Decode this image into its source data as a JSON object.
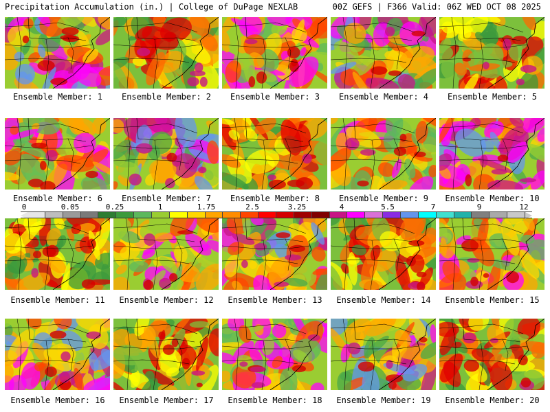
{
  "header": {
    "title": "Precipitation Accumulation (in.) | College of DuPage NEXLAB",
    "run_info": "00Z GEFS | F366 Valid: 06Z WED OCT 08 2025"
  },
  "panels": [
    {
      "label": "Ensemble Member: 1"
    },
    {
      "label": "Ensemble Member: 2"
    },
    {
      "label": "Ensemble Member: 3"
    },
    {
      "label": "Ensemble Member: 4"
    },
    {
      "label": "Ensemble Member: 5"
    },
    {
      "label": "Ensemble Member: 6"
    },
    {
      "label": "Ensemble Member: 7"
    },
    {
      "label": "Ensemble Member: 8"
    },
    {
      "label": "Ensemble Member: 9"
    },
    {
      "label": "Ensemble Member: 10"
    },
    {
      "label": "Ensemble Member: 11"
    },
    {
      "label": "Ensemble Member: 12"
    },
    {
      "label": "Ensemble Member: 13"
    },
    {
      "label": "Ensemble Member: 14"
    },
    {
      "label": "Ensemble Member: 15"
    },
    {
      "label": "Ensemble Member: 16"
    },
    {
      "label": "Ensemble Member: 17"
    },
    {
      "label": "Ensemble Member: 18"
    },
    {
      "label": "Ensemble Member: 19"
    },
    {
      "label": "Ensemble Member: 20"
    }
  ],
  "colorbar": {
    "tick_labels": [
      "0",
      "0.05",
      "0.25",
      "1",
      "1.75",
      "2.5",
      "3.25",
      "4",
      "5.5",
      "7",
      "9",
      "12"
    ],
    "colors": [
      "#e6e6e6",
      "#bdbdbd",
      "#9a9a9a",
      "#7a7a7a",
      "#2e7d32",
      "#3c9a3c",
      "#5cb85c",
      "#9acd32",
      "#ffff00",
      "#ffd700",
      "#ffa500",
      "#ff8c00",
      "#ff4500",
      "#ff0000",
      "#d40000",
      "#a00000",
      "#800000",
      "#c71585",
      "#ff00ff",
      "#da70d6",
      "#8a2be2",
      "#6495ed",
      "#00ffff",
      "#40e0d0",
      "#20b2aa",
      "#808080",
      "#a9a9a9",
      "#c8c8c8"
    ]
  }
}
